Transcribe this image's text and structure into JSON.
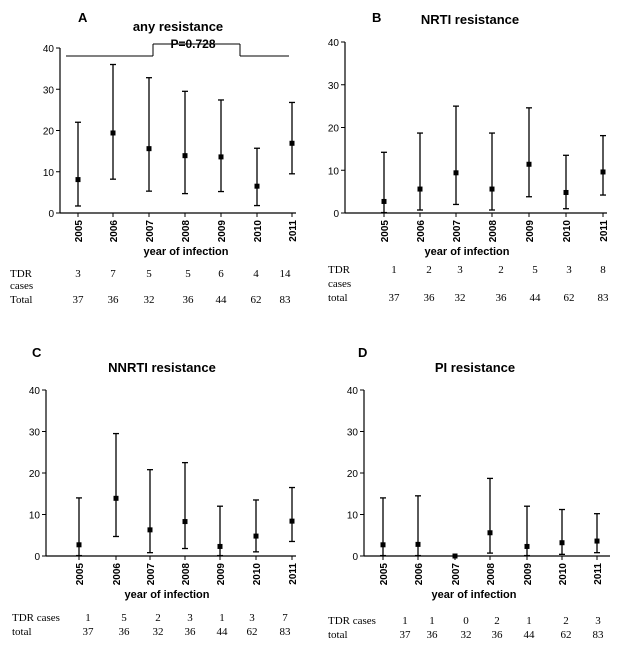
{
  "chart_data": [
    {
      "type": "scatter",
      "panel_letter": "A",
      "title": "any resistance",
      "xlabel": "year of infection",
      "ylabel": "",
      "ylim": [
        0,
        40
      ],
      "yticks": [
        "0",
        "10",
        "20",
        "30",
        "40"
      ],
      "categories": [
        "2005",
        "2006",
        "2007",
        "2008",
        "2009",
        "2010",
        "2011"
      ],
      "values": [
        8.1,
        19.4,
        15.6,
        13.9,
        13.6,
        6.5,
        16.9
      ],
      "lower": [
        1.7,
        8.2,
        5.3,
        4.7,
        5.2,
        1.8,
        9.5
      ],
      "upper": [
        22.0,
        36.0,
        32.8,
        29.5,
        27.4,
        15.7,
        26.8
      ],
      "p_value": "P=0.728",
      "table": {
        "rows": [
          {
            "label": "TDR",
            "values": [
              "3",
              "7",
              "5",
              "5",
              "6",
              "4",
              "14"
            ]
          },
          {
            "label": "cases",
            "values": []
          },
          {
            "label": "Total",
            "values": [
              "37",
              "36",
              "32",
              "36",
              "44",
              "62",
              "83"
            ]
          }
        ]
      }
    },
    {
      "type": "scatter",
      "panel_letter": "B",
      "title": "NRTI resistance",
      "xlabel": "year of infection",
      "ylabel": "",
      "ylim": [
        0,
        40
      ],
      "yticks": [
        "0",
        "10",
        "20",
        "30",
        "40"
      ],
      "categories": [
        "2005",
        "2006",
        "2007",
        "2008",
        "2009",
        "2010",
        "2011"
      ],
      "values": [
        2.7,
        5.6,
        9.4,
        5.6,
        11.4,
        4.8,
        9.6
      ],
      "lower": [
        0.1,
        0.7,
        2.0,
        0.7,
        3.8,
        1.0,
        4.2
      ],
      "upper": [
        14.2,
        18.7,
        25.0,
        18.7,
        24.6,
        13.5,
        18.1
      ],
      "table": {
        "rows": [
          {
            "label": "TDR",
            "values": [
              "1",
              "2",
              "3",
              "2",
              "5",
              "3",
              "8"
            ]
          },
          {
            "label": "cases",
            "values": []
          },
          {
            "label": "total",
            "values": [
              "37",
              "36",
              "32",
              "36",
              "44",
              "62",
              "83"
            ]
          }
        ]
      }
    },
    {
      "type": "scatter",
      "panel_letter": "C",
      "title": "NNRTI resistance",
      "xlabel": "year of infection",
      "ylabel": "",
      "ylim": [
        0,
        40
      ],
      "yticks": [
        "0",
        "10",
        "20",
        "30",
        "40"
      ],
      "categories": [
        "2005",
        "2006",
        "2007",
        "2008",
        "2009",
        "2010",
        "2011"
      ],
      "values": [
        2.7,
        13.9,
        6.3,
        8.3,
        2.3,
        4.8,
        8.4
      ],
      "lower": [
        0.1,
        4.7,
        0.8,
        1.8,
        0.1,
        1.0,
        3.5
      ],
      "upper": [
        14.0,
        29.5,
        20.8,
        22.5,
        12.0,
        13.5,
        16.5
      ],
      "table": {
        "rows": [
          {
            "label": "TDR cases",
            "values": [
              "1",
              "5",
              "2",
              "3",
              "1",
              "3",
              "7"
            ]
          },
          {
            "label": "total",
            "values": [
              "37",
              "36",
              "32",
              "36",
              "44",
              "62",
              "83"
            ]
          }
        ]
      }
    },
    {
      "type": "scatter",
      "panel_letter": "D",
      "title": "PI resistance",
      "xlabel": "year of infection",
      "ylabel": "",
      "ylim": [
        0,
        40
      ],
      "yticks": [
        "0",
        "10",
        "20",
        "30",
        "40"
      ],
      "categories": [
        "2005",
        "2006",
        "2007",
        "2008",
        "2009",
        "2010",
        "2011"
      ],
      "values": [
        2.7,
        2.8,
        0.0,
        5.6,
        2.3,
        3.2,
        3.6
      ],
      "lower": [
        0.1,
        0.1,
        0.0,
        0.7,
        0.1,
        0.4,
        0.8
      ],
      "upper": [
        14.0,
        14.5,
        0.0,
        18.7,
        12.0,
        11.2,
        10.2
      ],
      "table": {
        "rows": [
          {
            "label": "TDR cases",
            "values": [
              "1",
              "1",
              "0",
              "2",
              "1",
              "2",
              "3"
            ]
          },
          {
            "label": "total",
            "values": [
              "37",
              "36",
              "32",
              "36",
              "44",
              "62",
              "83"
            ]
          }
        ]
      }
    }
  ]
}
